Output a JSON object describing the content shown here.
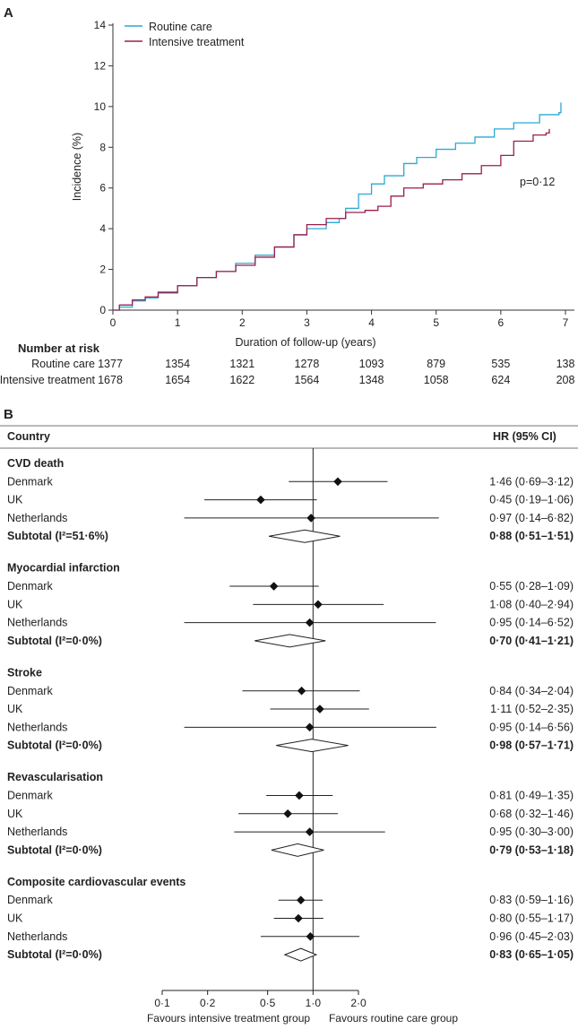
{
  "chart_data": [
    {
      "panel_label": "A",
      "type": "line",
      "step": true,
      "xlabel": "Duration of follow-up (years)",
      "ylabel": "Incidence (%)",
      "xlim": [
        0,
        7
      ],
      "ylim": [
        0,
        14
      ],
      "xticks": [
        "0",
        "1",
        "2",
        "3",
        "4",
        "5",
        "6",
        "7"
      ],
      "yticks": [
        "0",
        "2",
        "4",
        "6",
        "8",
        "10",
        "12",
        "14"
      ],
      "legend_placement": "top-left",
      "annotation": "p=0·12",
      "series": [
        {
          "name": "Routine care",
          "color": "#2aa9d2",
          "points": [
            [
              0,
              0
            ],
            [
              0.1,
              0.15
            ],
            [
              0.3,
              0.45
            ],
            [
              0.5,
              0.6
            ],
            [
              0.7,
              0.9
            ],
            [
              1.0,
              1.2
            ],
            [
              1.3,
              1.6
            ],
            [
              1.6,
              1.9
            ],
            [
              1.9,
              2.3
            ],
            [
              2.2,
              2.7
            ],
            [
              2.5,
              3.1
            ],
            [
              2.8,
              3.7
            ],
            [
              3.0,
              4.0
            ],
            [
              3.3,
              4.3
            ],
            [
              3.5,
              4.5
            ],
            [
              3.6,
              5.0
            ],
            [
              3.8,
              5.7
            ],
            [
              4.0,
              6.2
            ],
            [
              4.2,
              6.6
            ],
            [
              4.5,
              7.2
            ],
            [
              4.7,
              7.5
            ],
            [
              5.0,
              7.9
            ],
            [
              5.3,
              8.2
            ],
            [
              5.6,
              8.5
            ],
            [
              5.9,
              8.9
            ],
            [
              6.2,
              9.2
            ],
            [
              6.6,
              9.6
            ],
            [
              6.9,
              9.7
            ],
            [
              6.93,
              10.2
            ]
          ]
        },
        {
          "name": "Intensive treatment",
          "color": "#9b1f4e",
          "points": [
            [
              0,
              0
            ],
            [
              0.1,
              0.25
            ],
            [
              0.3,
              0.5
            ],
            [
              0.5,
              0.65
            ],
            [
              0.7,
              0.85
            ],
            [
              1.0,
              1.2
            ],
            [
              1.3,
              1.6
            ],
            [
              1.6,
              1.9
            ],
            [
              1.9,
              2.2
            ],
            [
              2.2,
              2.6
            ],
            [
              2.5,
              3.1
            ],
            [
              2.8,
              3.7
            ],
            [
              3.0,
              4.2
            ],
            [
              3.3,
              4.5
            ],
            [
              3.6,
              4.8
            ],
            [
              3.9,
              4.9
            ],
            [
              4.1,
              5.1
            ],
            [
              4.3,
              5.6
            ],
            [
              4.5,
              6.0
            ],
            [
              4.8,
              6.2
            ],
            [
              5.1,
              6.4
            ],
            [
              5.4,
              6.7
            ],
            [
              5.7,
              7.1
            ],
            [
              6.0,
              7.6
            ],
            [
              6.2,
              8.3
            ],
            [
              6.5,
              8.6
            ],
            [
              6.7,
              8.7
            ],
            [
              6.75,
              8.9
            ]
          ]
        }
      ],
      "number_at_risk": {
        "title": "Number at risk",
        "rows": [
          {
            "label": "Routine care",
            "values": [
              "1377",
              "1354",
              "1321",
              "1278",
              "1093",
              "879",
              "535",
              "138"
            ]
          },
          {
            "label": "Intensive treatment",
            "values": [
              "1678",
              "1654",
              "1622",
              "1564",
              "1348",
              "1058",
              "624",
              "208"
            ]
          }
        ]
      }
    },
    {
      "panel_label": "B",
      "type": "forest",
      "header_left": "Country",
      "header_right": "HR (95% CI)",
      "xscale": "log",
      "xlim": [
        0.1,
        2.0
      ],
      "xticks": [
        {
          "value": 0.1,
          "label": "0·1"
        },
        {
          "value": 0.2,
          "label": "0·2"
        },
        {
          "value": 0.5,
          "label": "0·5"
        },
        {
          "value": 1.0,
          "label": "1·0"
        },
        {
          "value": 2.0,
          "label": "2·0"
        }
      ],
      "reference_line": 1.0,
      "favours_left": "Favours intensive treatment group",
      "favours_right": "Favours routine care group",
      "groups": [
        {
          "title": "CVD death",
          "rows": [
            {
              "label": "Denmark",
              "hr": 1.46,
              "lo": 0.69,
              "hi": 3.12,
              "text": "1·46 (0·69–3·12)"
            },
            {
              "label": "UK",
              "hr": 0.45,
              "lo": 0.19,
              "hi": 1.06,
              "text": "0·45 (0·19–1·06)"
            },
            {
              "label": "Netherlands",
              "hr": 0.97,
              "lo": 0.14,
              "hi": 6.82,
              "text": "0·97 (0·14–6·82)"
            }
          ],
          "subtotal": {
            "label": "Subtotal (I²=51·6%)",
            "hr": 0.88,
            "lo": 0.51,
            "hi": 1.51,
            "text": "0·88 (0·51–1·51)"
          }
        },
        {
          "title": "Myocardial infarction",
          "rows": [
            {
              "label": "Denmark",
              "hr": 0.55,
              "lo": 0.28,
              "hi": 1.09,
              "text": "0·55 (0·28–1·09)"
            },
            {
              "label": "UK",
              "hr": 1.08,
              "lo": 0.4,
              "hi": 2.94,
              "text": "1·08 (0·40–2·94)"
            },
            {
              "label": "Netherlands",
              "hr": 0.95,
              "lo": 0.14,
              "hi": 6.52,
              "text": "0·95 (0·14–6·52)"
            }
          ],
          "subtotal": {
            "label": "Subtotal (I²=0·0%)",
            "hr": 0.7,
            "lo": 0.41,
            "hi": 1.21,
            "text": "0·70 (0·41–1·21)"
          }
        },
        {
          "title": "Stroke",
          "rows": [
            {
              "label": "Denmark",
              "hr": 0.84,
              "lo": 0.34,
              "hi": 2.04,
              "text": "0·84 (0·34–2·04)"
            },
            {
              "label": "UK",
              "hr": 1.11,
              "lo": 0.52,
              "hi": 2.35,
              "text": "1·11 (0·52–2·35)"
            },
            {
              "label": "Netherlands",
              "hr": 0.95,
              "lo": 0.14,
              "hi": 6.56,
              "text": "0·95 (0·14–6·56)"
            }
          ],
          "subtotal": {
            "label": "Subtotal (I²=0·0%)",
            "hr": 0.98,
            "lo": 0.57,
            "hi": 1.71,
            "text": "0·98 (0·57–1·71)"
          }
        },
        {
          "title": "Revascularisation",
          "rows": [
            {
              "label": "Denmark",
              "hr": 0.81,
              "lo": 0.49,
              "hi": 1.35,
              "text": "0·81 (0·49–1·35)"
            },
            {
              "label": "UK",
              "hr": 0.68,
              "lo": 0.32,
              "hi": 1.46,
              "text": "0·68 (0·32–1·46)"
            },
            {
              "label": "Netherlands",
              "hr": 0.95,
              "lo": 0.3,
              "hi": 3.0,
              "text": "0·95 (0·30–3·00)"
            }
          ],
          "subtotal": {
            "label": "Subtotal (I²=0·0%)",
            "hr": 0.79,
            "lo": 0.53,
            "hi": 1.18,
            "text": "0·79 (0·53–1·18)"
          }
        },
        {
          "title": "Composite cardiovascular events",
          "rows": [
            {
              "label": "Denmark",
              "hr": 0.83,
              "lo": 0.59,
              "hi": 1.16,
              "text": "0·83 (0·59–1·16)"
            },
            {
              "label": "UK",
              "hr": 0.8,
              "lo": 0.55,
              "hi": 1.17,
              "text": "0·80 (0·55–1·17)"
            },
            {
              "label": "Netherlands",
              "hr": 0.96,
              "lo": 0.45,
              "hi": 2.03,
              "text": "0·96 (0·45–2·03)"
            }
          ],
          "subtotal": {
            "label": "Subtotal (I²=0·0%)",
            "hr": 0.83,
            "lo": 0.65,
            "hi": 1.05,
            "text": "0·83 (0·65–1·05)"
          }
        }
      ]
    }
  ]
}
